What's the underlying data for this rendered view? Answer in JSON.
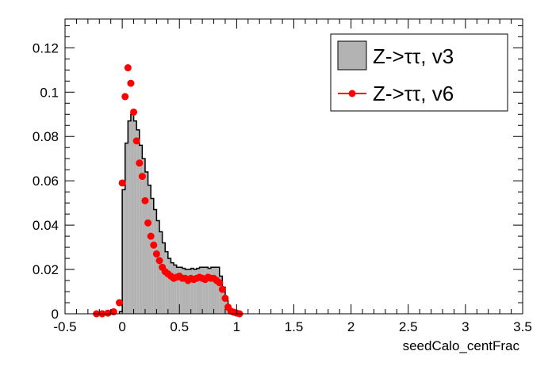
{
  "chart_data": {
    "type": "histogram",
    "title": "",
    "xlabel": "seedCalo_centFrac",
    "ylabel": "",
    "xlim": [
      -0.5,
      3.5
    ],
    "ylim": [
      0,
      0.133
    ],
    "x_ticks": [
      -0.5,
      0,
      0.5,
      1,
      1.5,
      2,
      2.5,
      3,
      3.5
    ],
    "x_tick_labels": [
      "-0.5",
      "0",
      "0.5",
      "1",
      "1.5",
      "2",
      "2.5",
      "3",
      "3.5"
    ],
    "y_ticks": [
      0,
      0.02,
      0.04,
      0.06,
      0.08,
      0.1,
      0.12
    ],
    "y_tick_labels": [
      "0",
      "0.02",
      "0.04",
      "0.06",
      "0.08",
      "0.1",
      "0.12"
    ],
    "grid": false,
    "legend_position": "top-right",
    "series": [
      {
        "name": "v3",
        "label": "Z->ττ, v3",
        "style": "filled-histogram",
        "color": "#b3b3b3",
        "line_color": "#000000",
        "bin_width": 0.025,
        "x": [
          -0.025,
          0.0,
          0.025,
          0.05,
          0.075,
          0.1,
          0.125,
          0.15,
          0.175,
          0.2,
          0.225,
          0.25,
          0.275,
          0.3,
          0.325,
          0.35,
          0.375,
          0.4,
          0.425,
          0.45,
          0.475,
          0.5,
          0.525,
          0.55,
          0.575,
          0.6,
          0.625,
          0.65,
          0.675,
          0.7,
          0.725,
          0.75,
          0.775,
          0.8,
          0.825,
          0.85,
          0.875,
          0.9,
          0.925,
          0.95,
          0.975,
          1.0,
          1.025
        ],
        "values": [
          0.001,
          0.056,
          0.077,
          0.087,
          0.09,
          0.087,
          0.083,
          0.076,
          0.07,
          0.064,
          0.058,
          0.052,
          0.047,
          0.042,
          0.037,
          0.032,
          0.028,
          0.025,
          0.023,
          0.022,
          0.021,
          0.021,
          0.0205,
          0.02,
          0.02,
          0.0205,
          0.02,
          0.0205,
          0.021,
          0.021,
          0.021,
          0.0205,
          0.021,
          0.021,
          0.021,
          0.017,
          0.012,
          0.006,
          0.002,
          0.0005,
          0.0,
          0.0,
          0.0
        ]
      },
      {
        "name": "v6",
        "label": "Z->ττ, v6",
        "style": "markers",
        "color": "#ff0000",
        "x": [
          -0.225,
          -0.175,
          -0.125,
          -0.075,
          -0.025,
          0.0,
          0.025,
          0.05,
          0.075,
          0.1,
          0.125,
          0.15,
          0.175,
          0.2,
          0.225,
          0.25,
          0.275,
          0.3,
          0.325,
          0.35,
          0.375,
          0.4,
          0.425,
          0.45,
          0.475,
          0.5,
          0.525,
          0.55,
          0.575,
          0.6,
          0.625,
          0.65,
          0.675,
          0.7,
          0.725,
          0.75,
          0.775,
          0.8,
          0.825,
          0.85,
          0.875,
          0.9,
          0.925,
          0.95,
          0.975,
          1.0,
          1.025
        ],
        "values": [
          0.0,
          0.0,
          0.0003,
          0.0009,
          0.005,
          0.059,
          0.098,
          0.111,
          0.104,
          0.091,
          0.078,
          0.068,
          0.062,
          0.051,
          0.041,
          0.035,
          0.031,
          0.027,
          0.024,
          0.021,
          0.019,
          0.018,
          0.017,
          0.016,
          0.0165,
          0.017,
          0.016,
          0.016,
          0.015,
          0.016,
          0.0155,
          0.016,
          0.0165,
          0.016,
          0.0155,
          0.0165,
          0.016,
          0.016,
          0.015,
          0.014,
          0.011,
          0.007,
          0.003,
          0.0012,
          0.0007,
          0.0003,
          0.0
        ]
      }
    ]
  }
}
